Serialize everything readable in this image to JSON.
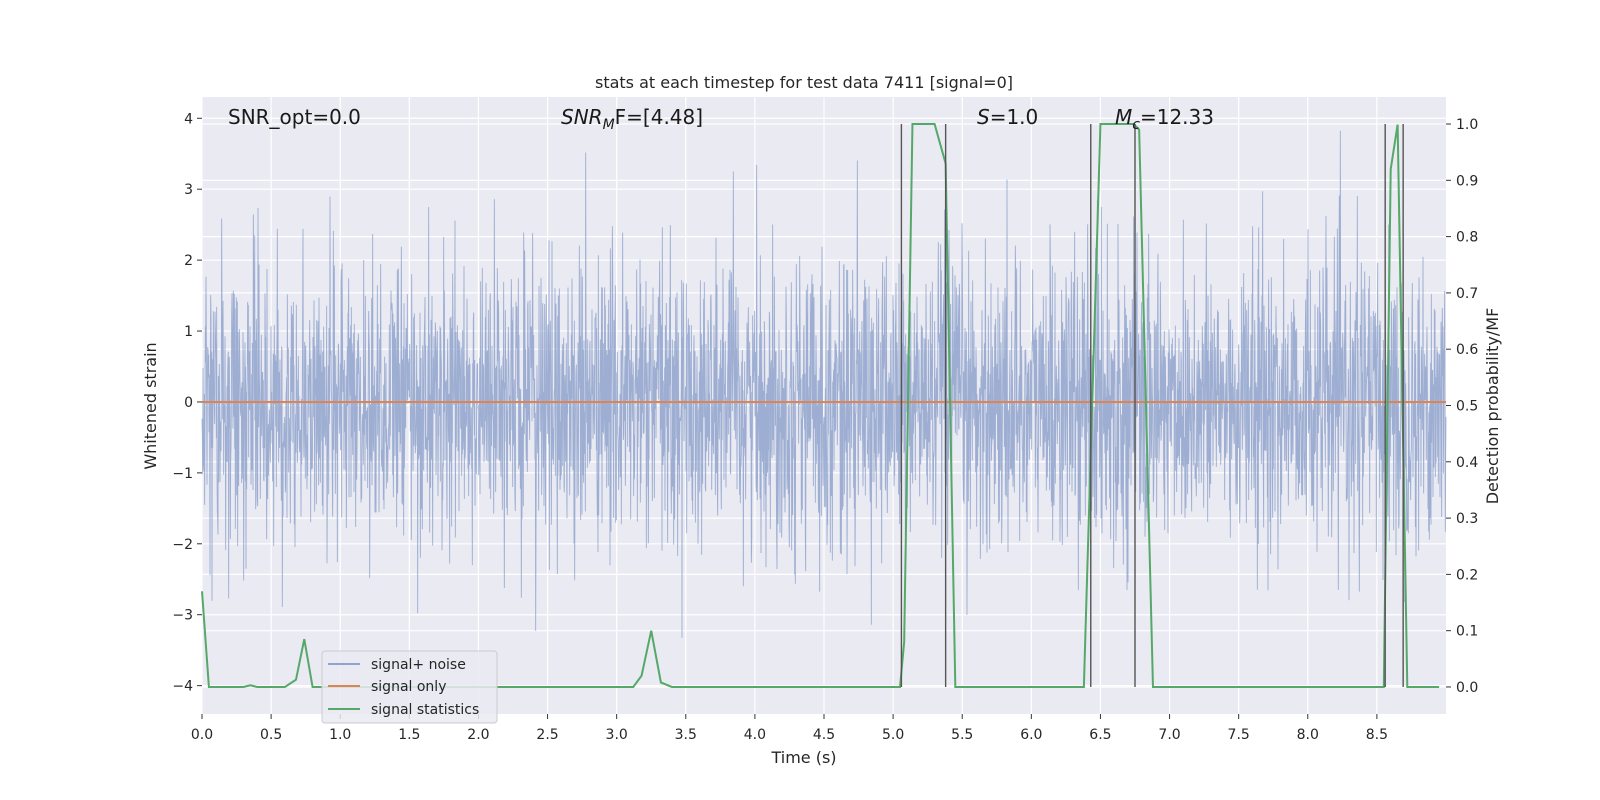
{
  "chart_data": {
    "type": "line",
    "title": "stats at each timestep for test data 7411 [signal=0]",
    "xlabel": "Time (s)",
    "ylabel": "Whitened strain",
    "y2label": "Detection probability/MF",
    "xlim": [
      0,
      9.0
    ],
    "ylim": [
      -4.4,
      4.3
    ],
    "y2lim": [
      -0.048,
      1.048
    ],
    "xticks": [
      0.0,
      0.5,
      1.0,
      1.5,
      2.0,
      2.5,
      3.0,
      3.5,
      4.0,
      4.5,
      5.0,
      5.5,
      6.0,
      6.5,
      7.0,
      7.5,
      8.0,
      8.5
    ],
    "yticks": [
      -4,
      -3,
      -2,
      -1,
      0,
      1,
      2,
      3,
      4
    ],
    "y2ticks": [
      0.0,
      0.1,
      0.2,
      0.3,
      0.4,
      0.5,
      0.6,
      0.7,
      0.8,
      0.9,
      1.0
    ],
    "grid": true,
    "legend_position": "lower-left",
    "annotations": [
      {
        "text": "SNR_opt=0.0",
        "x": 0.2
      },
      {
        "text_main": "SNR",
        "text_sub": "M",
        "text_rest": "F=[4.48]",
        "x": 2.6
      },
      {
        "text_main": "S",
        "text_rest": "=1.0",
        "x": 5.6
      },
      {
        "text_main": "M",
        "text_sub": "c",
        "text_rest": "=12.33",
        "x": 6.6
      }
    ],
    "series": [
      {
        "name": "signal+ noise",
        "color": "#8fa3cc",
        "axis": "left",
        "style": "noise",
        "amplitude_sigma": 1.0,
        "peak_range": [
          -4.0,
          3.9
        ],
        "x_range": [
          0,
          9.0
        ]
      },
      {
        "name": "signal only",
        "color": "#dd8452",
        "axis": "left",
        "x": [
          0,
          9.0
        ],
        "y": [
          0,
          0
        ]
      },
      {
        "name": "signal statistics",
        "color": "#55a868",
        "axis": "right",
        "x": [
          0.0,
          0.05,
          0.1,
          0.2,
          0.3,
          0.35,
          0.4,
          0.5,
          0.6,
          0.68,
          0.74,
          0.8,
          0.85,
          1.0,
          1.5,
          2.0,
          2.5,
          3.0,
          3.12,
          3.18,
          3.25,
          3.32,
          3.4,
          3.5,
          4.0,
          4.5,
          5.0,
          5.05,
          5.08,
          5.14,
          5.3,
          5.38,
          5.45,
          5.5,
          6.0,
          6.38,
          6.5,
          6.74,
          6.78,
          6.88,
          7.0,
          7.5,
          8.0,
          8.55,
          8.6,
          8.65,
          8.72,
          8.85,
          8.95
        ],
        "y": [
          0.17,
          0.0,
          0.0,
          0.0,
          0.0,
          0.003,
          0.0,
          0.0,
          0.0,
          0.013,
          0.085,
          0.0,
          0.0,
          0.0,
          0.0,
          0.0,
          0.0,
          0.0,
          0.0,
          0.02,
          0.1,
          0.008,
          0.0,
          0.0,
          0.0,
          0.0,
          0.0,
          0.0,
          0.08,
          1.0,
          1.0,
          0.93,
          0.0,
          0.0,
          0.0,
          0.0,
          1.0,
          1.0,
          0.99,
          0.0,
          0.0,
          0.0,
          0.0,
          0.0,
          0.92,
          0.999,
          0.0,
          0.0,
          0.0
        ]
      }
    ],
    "vertical_lines": {
      "color": "#555555",
      "x": [
        5.06,
        5.38,
        6.43,
        6.75,
        8.56,
        8.69
      ]
    }
  }
}
